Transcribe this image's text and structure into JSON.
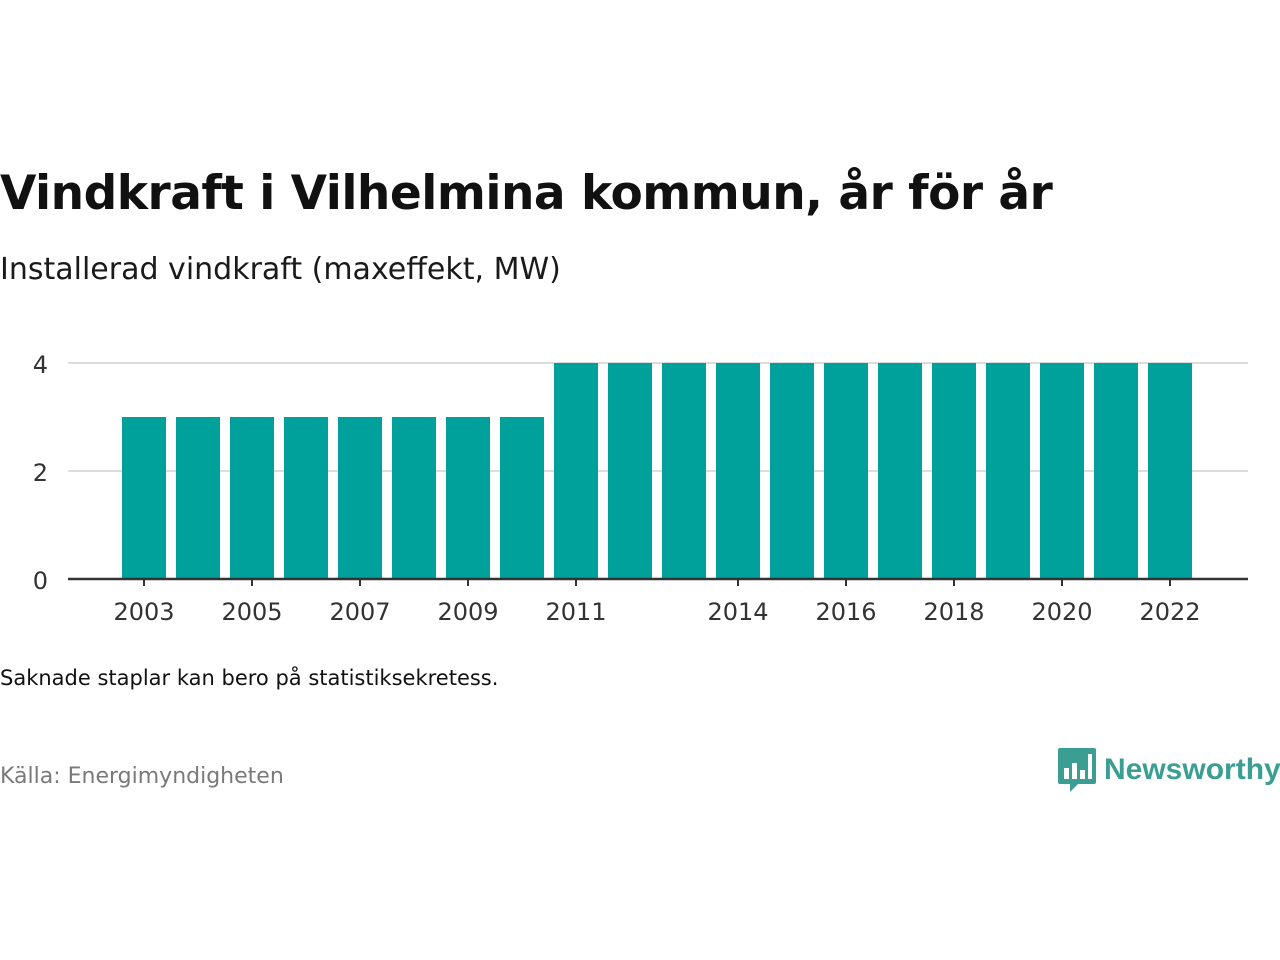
{
  "header": {
    "title": "Vindkraft i Vilhelmina kommun, år för år",
    "subtitle": "Installerad vindkraft (maxeffekt, MW)"
  },
  "footer": {
    "note": "Saknade staplar kan bero på statistiksekretess.",
    "source": "Källa: Energimyndigheten",
    "brand": "Newsworthy",
    "brand_color": "#3a9e93"
  },
  "colors": {
    "bar": "#00a19a",
    "grid": "#dddddd",
    "axis": "#333333"
  },
  "chart_data": {
    "type": "bar",
    "categories": [
      "2003",
      "2004",
      "2005",
      "2006",
      "2007",
      "2008",
      "2009",
      "2010",
      "2011",
      "2012",
      "2013",
      "2014",
      "2015",
      "2016",
      "2017",
      "2018",
      "2019",
      "2020",
      "2021",
      "2022"
    ],
    "values": [
      3,
      3,
      3,
      3,
      3,
      3,
      3,
      3,
      4,
      4,
      4,
      4,
      4,
      4,
      4,
      4,
      4,
      4,
      4,
      4
    ],
    "x_tick_labels": [
      "2003",
      "2005",
      "2007",
      "2009",
      "2011",
      "2014",
      "2016",
      "2018",
      "2020",
      "2022"
    ],
    "y_ticks": [
      0,
      2,
      4
    ],
    "ylim": [
      0,
      4
    ],
    "grid": true
  }
}
